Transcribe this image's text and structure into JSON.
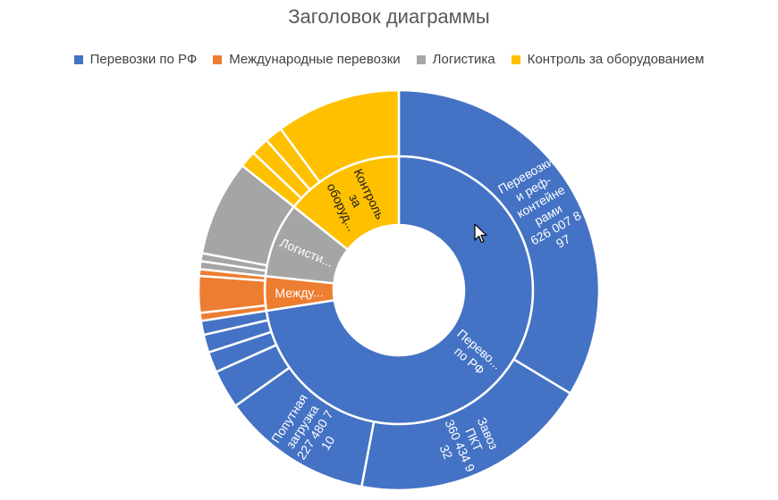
{
  "chart_data": {
    "type": "sunburst",
    "title": "Заголовок диаграммы",
    "legend_position": "top",
    "categories": [
      {
        "name": "Перевозки по РФ",
        "color": "#4472C4"
      },
      {
        "name": "Международные перевозки",
        "color": "#ED7D31"
      },
      {
        "name": "Логистика",
        "color": "#A5A5A5"
      },
      {
        "name": "Контроль за оборудованием",
        "color": "#FFC000"
      }
    ],
    "inner_ring": [
      {
        "category": 0,
        "label_lines": [
          "Перево...",
          "по РФ"
        ],
        "value": 1350
      },
      {
        "category": 1,
        "label_lines": [
          "Между..."
        ],
        "value": 77
      },
      {
        "category": 2,
        "label_lines": [
          "Логисти..."
        ],
        "value": 168
      },
      {
        "category": 3,
        "label_lines": [
          "Контроль",
          "за",
          "оборуд..."
        ],
        "value": 266
      }
    ],
    "outer_ring": [
      {
        "category": 0,
        "label_lines": [
          "Перевозки",
          "и реф-",
          "контейне",
          "рами",
          "626 007 8",
          "97"
        ],
        "value": 626
      },
      {
        "category": 0,
        "label_lines": [
          "Завоз",
          "ПКТ",
          "360 434 9",
          "32"
        ],
        "value": 360
      },
      {
        "category": 0,
        "label_lines": [
          "Попутная",
          "загрузка",
          "227 480 7",
          "10"
        ],
        "value": 227
      },
      {
        "category": 0,
        "label_lines": [],
        "value": 58
      },
      {
        "category": 0,
        "label_lines": [],
        "value": 31
      },
      {
        "category": 0,
        "label_lines": [],
        "value": 27
      },
      {
        "category": 0,
        "label_lines": [],
        "value": 21
      },
      {
        "category": 1,
        "label_lines": [],
        "value": 12
      },
      {
        "category": 1,
        "label_lines": [],
        "value": 55
      },
      {
        "category": 1,
        "label_lines": [],
        "value": 10
      },
      {
        "category": 2,
        "label_lines": [],
        "value": 12
      },
      {
        "category": 2,
        "label_lines": [],
        "value": 12
      },
      {
        "category": 2,
        "label_lines": [],
        "value": 144
      },
      {
        "category": 3,
        "label_lines": [],
        "value": 25
      },
      {
        "category": 3,
        "label_lines": [],
        "value": 27
      },
      {
        "category": 3,
        "label_lines": [],
        "value": 27
      },
      {
        "category": 3,
        "label_lines": [],
        "value": 187
      }
    ]
  }
}
